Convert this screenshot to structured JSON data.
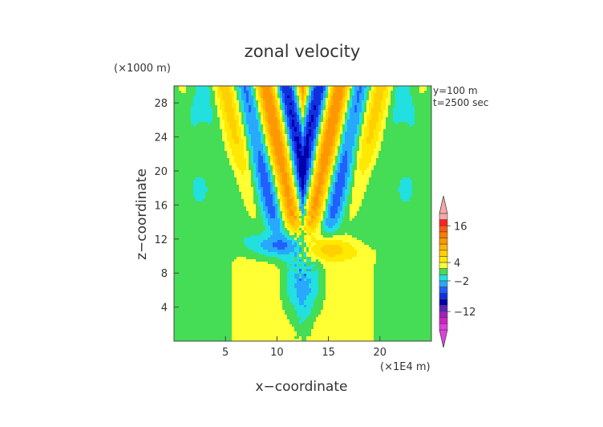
{
  "chart_data": {
    "type": "heatmap",
    "title": "zonal velocity",
    "xlabel": "x−coordinate",
    "ylabel": "z−coordinate",
    "x_unit": "(×1E4 m)",
    "y_unit": "(×1000 m)",
    "annotations": [
      "y=100  m",
      "t=2500 sec"
    ],
    "xlim": [
      0,
      25
    ],
    "ylim": [
      0,
      30
    ],
    "x_ticks": [
      5,
      10,
      15,
      20
    ],
    "y_ticks": [
      4,
      8,
      12,
      16,
      20,
      24,
      28
    ],
    "x_tick_labels": [
      "5",
      "10",
      "15",
      "20"
    ],
    "y_tick_labels": [
      "4",
      "8",
      "12",
      "16",
      "20",
      "24",
      "28"
    ],
    "colorbar": {
      "labels": [
        {
          "value": 16,
          "text": "16"
        },
        {
          "value": 4,
          "text": "4"
        },
        {
          "value": -2,
          "text": "−2"
        },
        {
          "value": -12,
          "text": "−12"
        }
      ],
      "bands": [
        {
          "lo": 18,
          "hi": 20,
          "color": "#f6a7a7"
        },
        {
          "lo": 16,
          "hi": 18,
          "color": "#ff2020"
        },
        {
          "lo": 14,
          "hi": 16,
          "color": "#ff5a10"
        },
        {
          "lo": 12,
          "hi": 14,
          "color": "#ff7a00"
        },
        {
          "lo": 10,
          "hi": 12,
          "color": "#ff9800"
        },
        {
          "lo": 8,
          "hi": 10,
          "color": "#ffb400"
        },
        {
          "lo": 6,
          "hi": 8,
          "color": "#ffd000"
        },
        {
          "lo": 4,
          "hi": 6,
          "color": "#ffe900"
        },
        {
          "lo": 2,
          "hi": 4,
          "color": "#ffff33"
        },
        {
          "lo": 0,
          "hi": 2,
          "color": "#44dd55"
        },
        {
          "lo": -2,
          "hi": 0,
          "color": "#22e0e0"
        },
        {
          "lo": -4,
          "hi": -2,
          "color": "#28a8ff"
        },
        {
          "lo": -6,
          "hi": -4,
          "color": "#2060ff"
        },
        {
          "lo": -8,
          "hi": -6,
          "color": "#1030e0"
        },
        {
          "lo": -10,
          "hi": -8,
          "color": "#0000aa"
        },
        {
          "lo": -12,
          "hi": -10,
          "color": "#6020c0"
        },
        {
          "lo": -14,
          "hi": -12,
          "color": "#a020c0"
        },
        {
          "lo": -16,
          "hi": -14,
          "color": "#d020c0"
        },
        {
          "lo": -18,
          "hi": -16,
          "color": "#e040e0"
        }
      ]
    }
  }
}
